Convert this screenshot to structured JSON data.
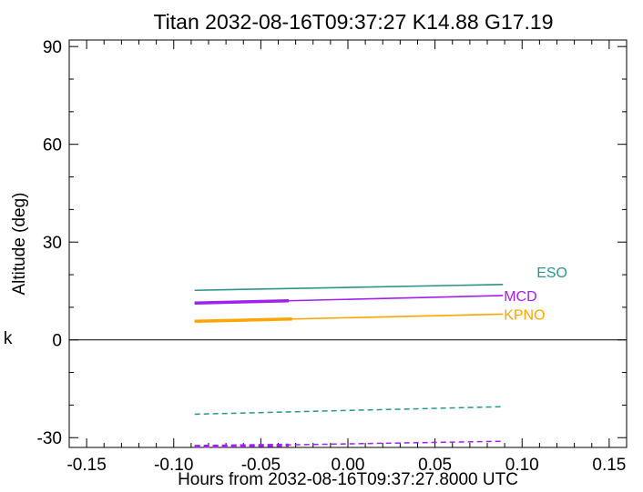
{
  "chart_data": {
    "type": "line",
    "title": "Titan 2032-08-16T09:37:27  K14.88  G17.19",
    "xlabel": "Hours from 2032-08-16T09:37:27.8000 UTC",
    "ylabel": "Altitude (deg)",
    "side_label": "k",
    "xlim": [
      -0.16,
      0.16
    ],
    "ylim": [
      -33,
      92
    ],
    "xticks": [
      -0.15,
      -0.1,
      -0.05,
      0.0,
      0.05,
      0.1,
      0.15
    ],
    "xtick_labels": [
      "-0.15",
      "-0.10",
      "-0.05",
      "0.00",
      "0.05",
      "0.10",
      "0.15"
    ],
    "yticks": [
      -30,
      0,
      30,
      60,
      90
    ],
    "ytick_labels": [
      "-30",
      "0",
      "30",
      "60",
      "90"
    ],
    "zero_line": true,
    "grid": false,
    "series": [
      {
        "name": "ESO",
        "color": "#2a9488",
        "altitude": {
          "x": [
            -0.088,
            0.089
          ],
          "y": [
            15.2,
            17.0
          ]
        },
        "thick": null,
        "dashed": {
          "x": [
            -0.088,
            0.089
          ],
          "y": [
            -22.8,
            -20.5
          ]
        }
      },
      {
        "name": "MCD",
        "color": "#a020f0",
        "altitude": {
          "x": [
            -0.088,
            0.089
          ],
          "y": [
            11.3,
            13.6
          ]
        },
        "thick": {
          "x": [
            -0.088,
            -0.034
          ],
          "y": [
            11.3,
            12.0
          ]
        },
        "dashed": {
          "x": [
            -0.088,
            0.089
          ],
          "y": [
            -32.7,
            -31.1
          ]
        },
        "dashed_thick": {
          "x": [
            -0.088,
            -0.034
          ],
          "y": [
            -32.7,
            -32.3
          ]
        }
      },
      {
        "name": "KPNO",
        "color": "#ffa500",
        "altitude": {
          "x": [
            -0.088,
            0.089
          ],
          "y": [
            5.7,
            7.9
          ]
        },
        "thick": {
          "x": [
            -0.088,
            -0.032
          ],
          "y": [
            5.7,
            6.4
          ]
        },
        "dashed": null
      }
    ]
  }
}
